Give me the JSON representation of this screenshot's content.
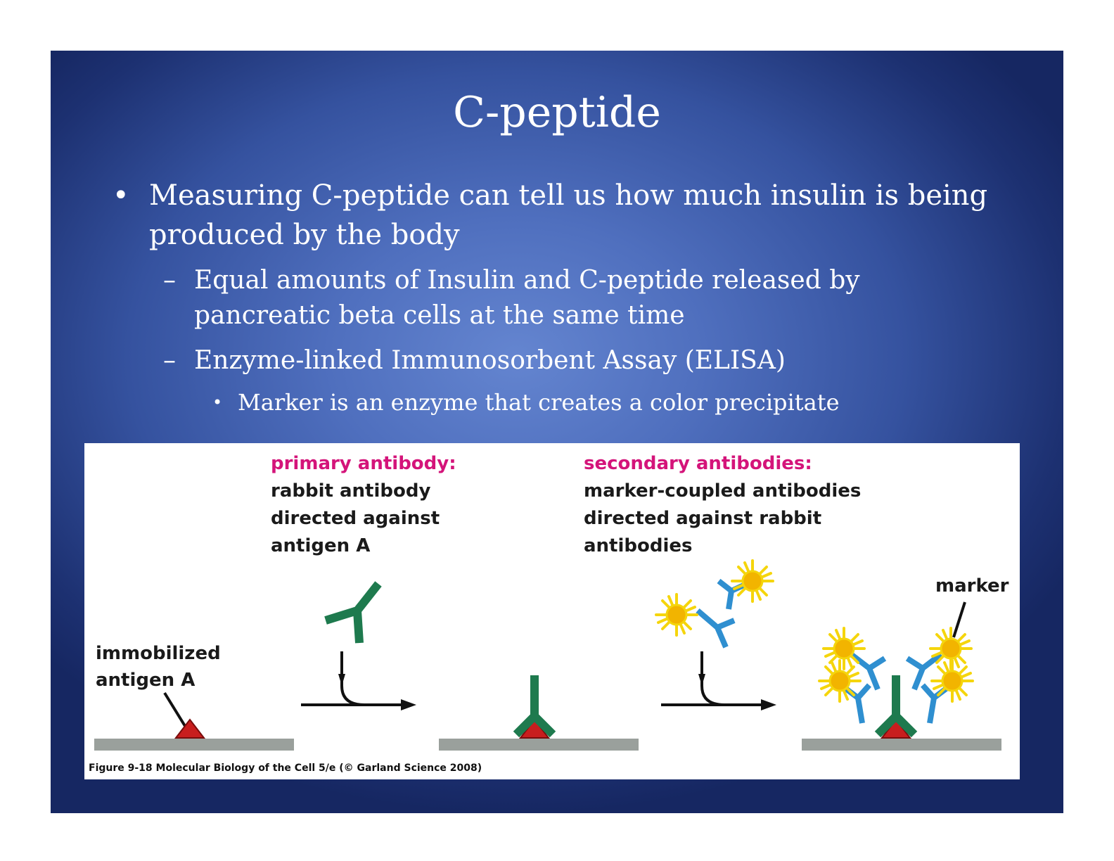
{
  "slide": {
    "title": "C-peptide",
    "bullets": [
      {
        "level": 1,
        "marker": "•",
        "text": "Measuring C-peptide can tell us how much insulin is being produced by the body"
      },
      {
        "level": 2,
        "marker": "–",
        "text": "Equal amounts of Insulin and C-peptide released by pancreatic beta cells at the same time"
      },
      {
        "level": 2,
        "marker": "–",
        "text": "Enzyme-linked Immunosorbent Assay (ELISA)"
      },
      {
        "level": 3,
        "marker": "•",
        "text": "Marker is an enzyme that creates a color precipitate"
      }
    ]
  },
  "figure": {
    "primary_heading": "primary antibody:",
    "primary_lines": [
      "rabbit antibody",
      "directed against",
      "antigen A"
    ],
    "secondary_heading": "secondary antibodies:",
    "secondary_lines": [
      "marker-coupled antibodies",
      "directed against rabbit",
      "antibodies"
    ],
    "antigen_lines": [
      "immobilized",
      "antigen A"
    ],
    "marker_label": "marker",
    "caption": "Figure 9-18  Molecular Biology of the Cell 5/e (© Garland Science 2008)",
    "colors": {
      "heading_pink": "#d4147a",
      "primary_antibody_green": "#1e7a4e",
      "secondary_antibody_blue": "#2f8fd0",
      "marker_yellow": "#f5d50c",
      "antigen_red": "#c81e1e",
      "surface_gray": "#9aa09c"
    }
  },
  "colors": {
    "slide_background": "#4a68b8",
    "text": "#ffffff"
  }
}
